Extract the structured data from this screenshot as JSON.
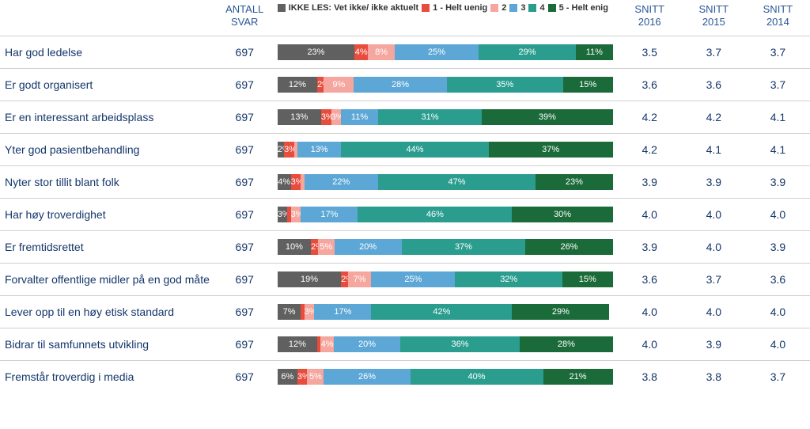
{
  "columns": {
    "antall": [
      "ANTALL",
      "SVAR"
    ],
    "snitt2016": [
      "SNITT",
      "2016"
    ],
    "snitt2015": [
      "SNITT",
      "2015"
    ],
    "snitt2014": [
      "SNITT",
      "2014"
    ]
  },
  "legend": [
    {
      "label": "IKKE LES: Vet ikke/ ikke aktuelt",
      "color": "#606060"
    },
    {
      "label": "1 - Helt uenig",
      "color": "#e74c3c"
    },
    {
      "label": "2",
      "color": "#f5a79f"
    },
    {
      "label": "3",
      "color": "#5ca7d6"
    },
    {
      "label": "4",
      "color": "#2a9d8f"
    },
    {
      "label": "5 - Helt enig",
      "color": "#1b6b3a"
    }
  ],
  "segment_colors": [
    "#606060",
    "#e74c3c",
    "#f5a79f",
    "#5ca7d6",
    "#2a9d8f",
    "#1b6b3a"
  ],
  "segment_label_min_pct": 2,
  "rows": [
    {
      "label": "Har god ledelse",
      "antall": 697,
      "segments": [
        23,
        4,
        8,
        25,
        29,
        11
      ],
      "snitt": [
        "3.5",
        "3.7",
        "3.7"
      ]
    },
    {
      "label": "Er godt organisert",
      "antall": 697,
      "segments": [
        12,
        2,
        9,
        28,
        35,
        15
      ],
      "snitt": [
        "3.6",
        "3.6",
        "3.7"
      ]
    },
    {
      "label": "Er en interessant arbeidsplass",
      "antall": 697,
      "segments": [
        13,
        3,
        3,
        11,
        31,
        39
      ],
      "snitt": [
        "4.2",
        "4.2",
        "4.1"
      ]
    },
    {
      "label": "Yter god pasientbehandling",
      "antall": 697,
      "segments": [
        2,
        3,
        1,
        13,
        44,
        37
      ],
      "snitt": [
        "4.2",
        "4.1",
        "4.1"
      ]
    },
    {
      "label": "Nyter stor tillit blant folk",
      "antall": 697,
      "segments": [
        4,
        3,
        1,
        22,
        47,
        23
      ],
      "snitt": [
        "3.9",
        "3.9",
        "3.9"
      ]
    },
    {
      "label": "Har høy troverdighet",
      "antall": 697,
      "segments": [
        3,
        1,
        3,
        17,
        46,
        30
      ],
      "snitt": [
        "4.0",
        "4.0",
        "4.0"
      ]
    },
    {
      "label": "Er fremtidsrettet",
      "antall": 697,
      "segments": [
        10,
        2,
        5,
        20,
        37,
        26
      ],
      "snitt": [
        "3.9",
        "4.0",
        "3.9"
      ]
    },
    {
      "label": "Forvalter offentlige midler på en god måte",
      "antall": 697,
      "segments": [
        19,
        2,
        7,
        25,
        32,
        15
      ],
      "snitt": [
        "3.6",
        "3.7",
        "3.6"
      ]
    },
    {
      "label": "Lever opp til en høy etisk standard",
      "antall": 697,
      "segments": [
        7,
        1,
        3,
        17,
        42,
        29
      ],
      "snitt": [
        "4.0",
        "4.0",
        "4.0"
      ]
    },
    {
      "label": "Bidrar til samfunnets utvikling",
      "antall": 697,
      "segments": [
        12,
        1,
        4,
        20,
        36,
        28
      ],
      "snitt": [
        "4.0",
        "3.9",
        "4.0"
      ]
    },
    {
      "label": "Fremstår troverdig i media",
      "antall": 697,
      "segments": [
        6,
        3,
        5,
        26,
        40,
        21
      ],
      "snitt": [
        "3.8",
        "3.8",
        "3.7"
      ]
    }
  ]
}
